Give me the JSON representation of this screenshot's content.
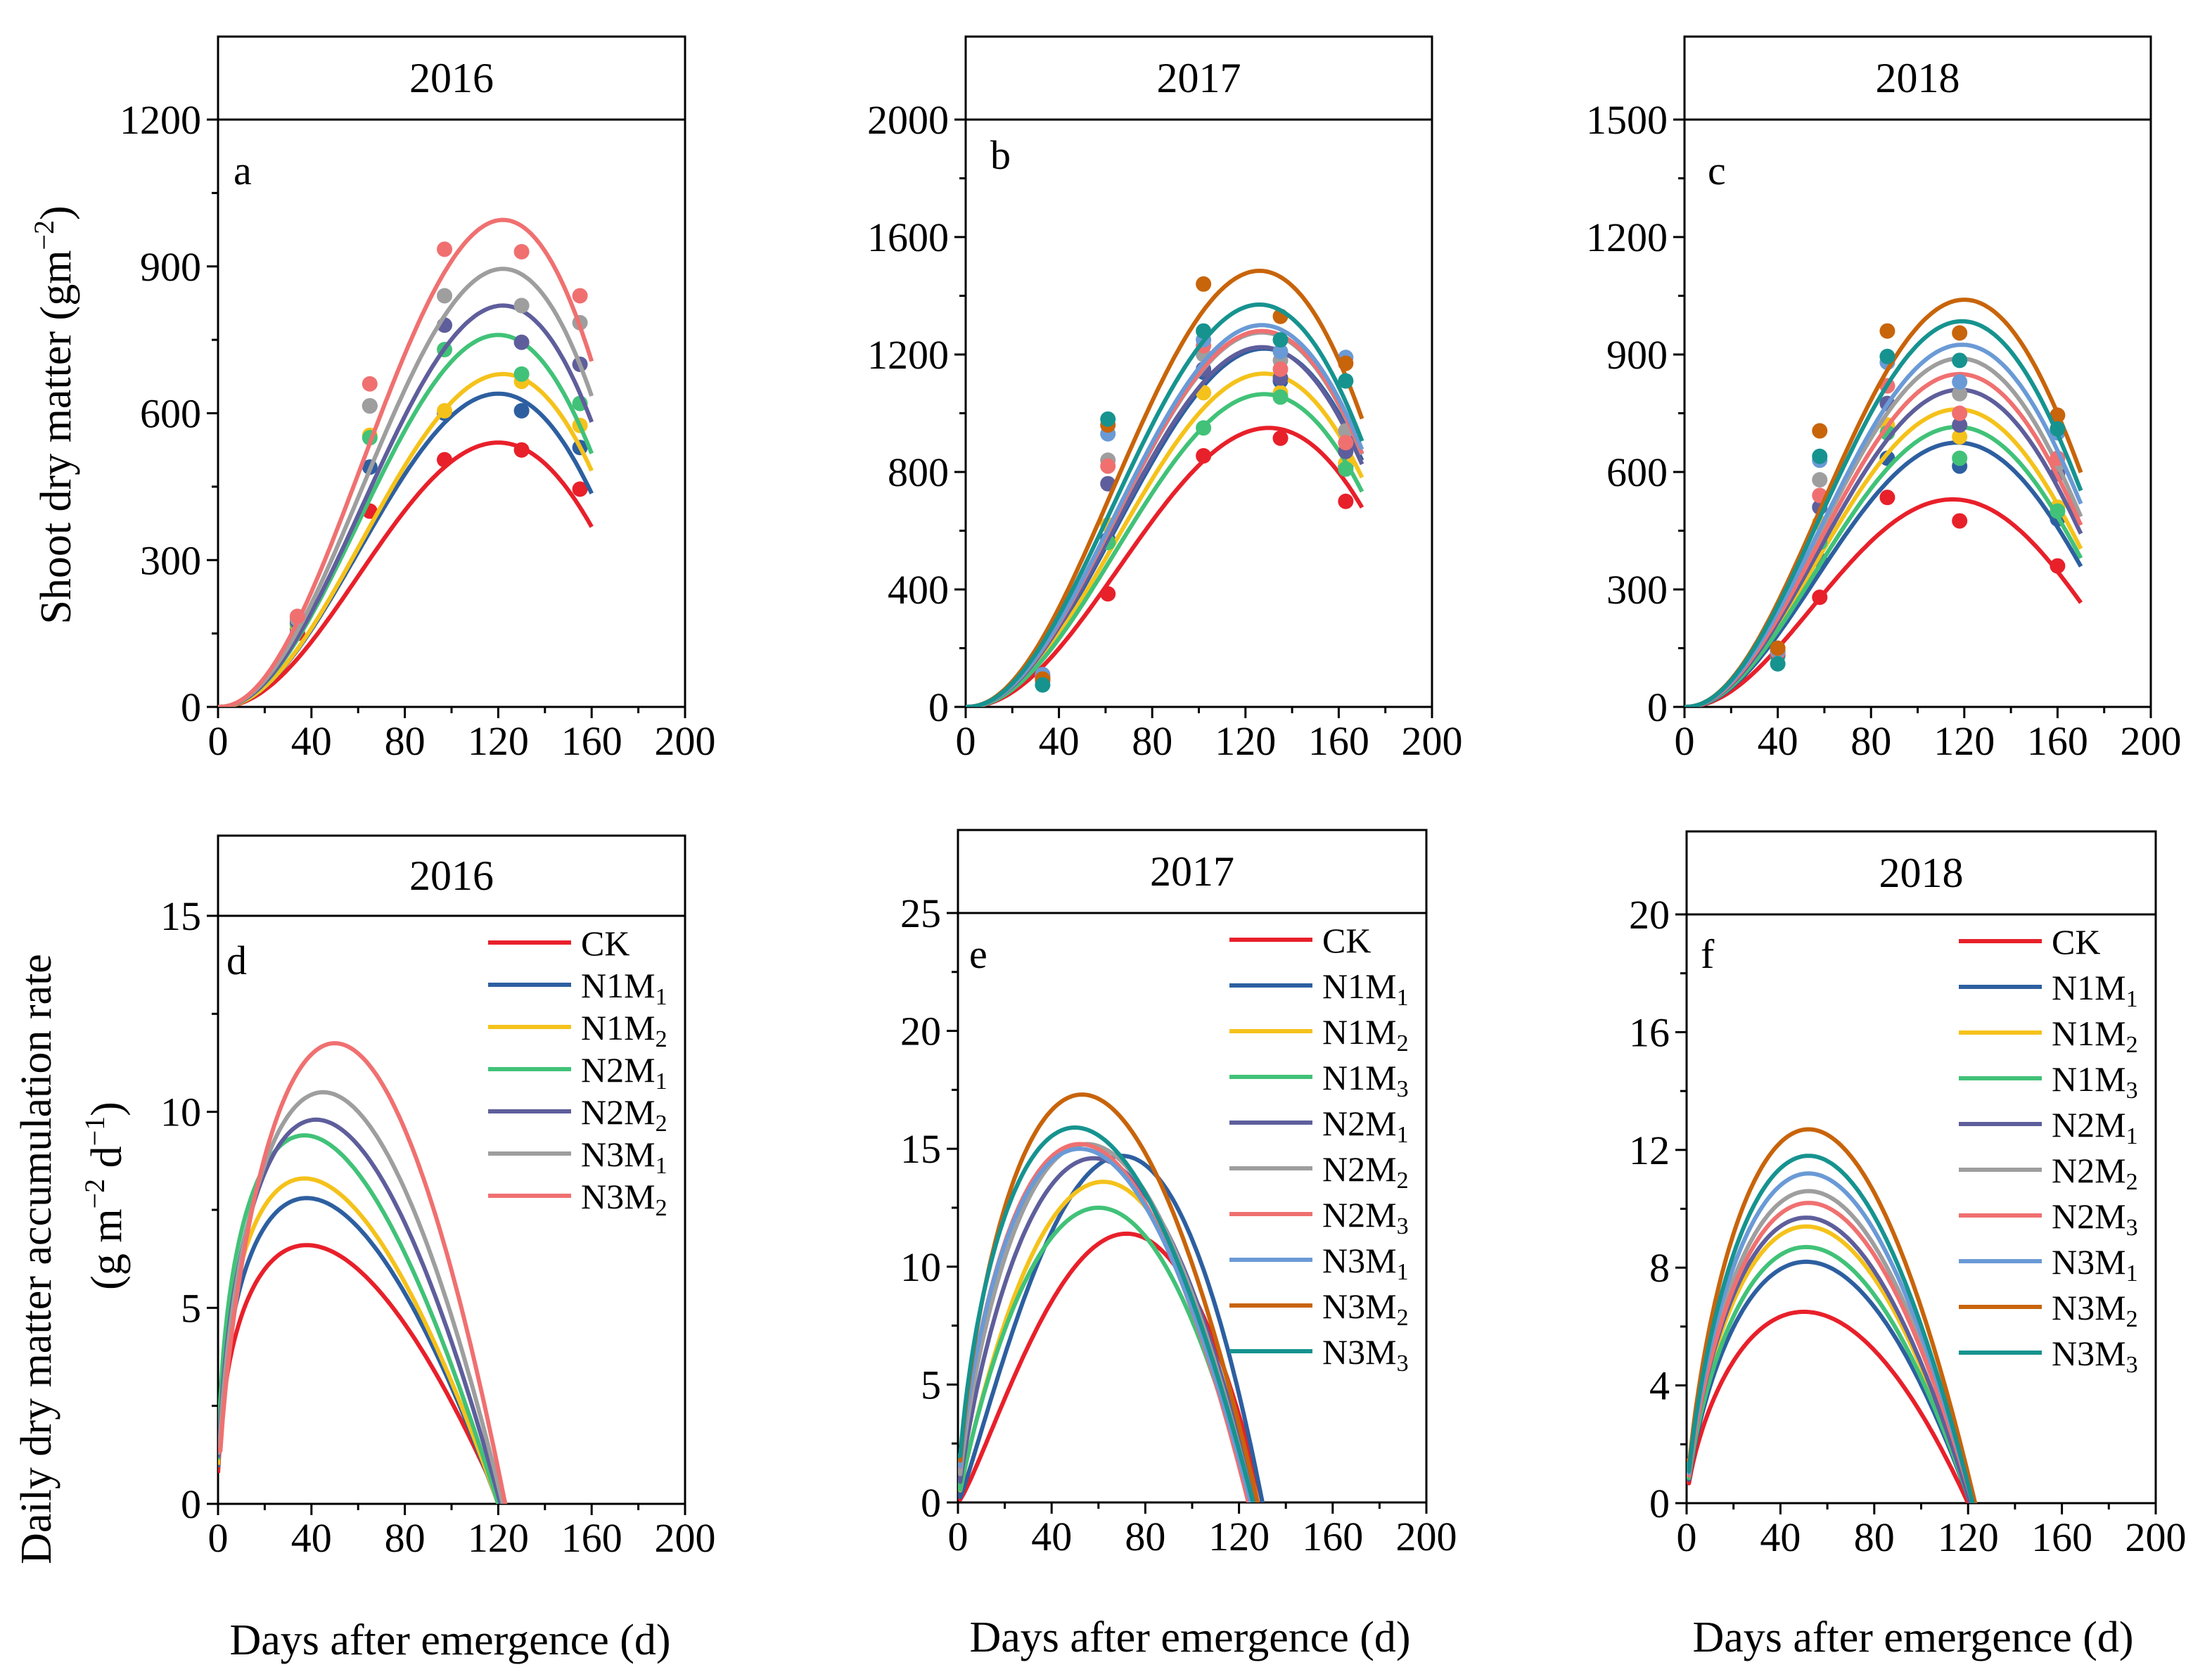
{
  "figure": {
    "y_label_top": "Shoot dry matter (gm",
    "y_label_top_sup": "−2",
    "y_label_top_close": ")",
    "y_label_bottom_line1": "Daily dry matter accumulation rate",
    "y_label_bottom_line2_a": "(g m",
    "y_label_bottom_line2_sup1": "−2",
    "y_label_bottom_line2_b": " d",
    "y_label_bottom_line2_sup2": "−1",
    "y_label_bottom_line2_c": ")",
    "x_label": "Days after emergence (d)"
  },
  "colors": {
    "CK": "#e8202a",
    "N1M1": "#2d5fa0",
    "N1M2": "#f5c21b",
    "N1M3": "#41c278",
    "N2M1": "#5e5e9c",
    "N2M2": "#9e9e9e",
    "N2M3": "#f07070",
    "N3M1": "#6a9ad6",
    "N3M2": "#c8640a",
    "N3M3": "#16938f",
    "N2M1_2016": "#41c278",
    "N2M2_2016": "#5e5e9c",
    "N3M1_2016": "#9e9e9e",
    "N3M2_2016": "#f07070"
  },
  "chart_data": [
    {
      "id": "a",
      "type": "scatter+line",
      "title": "2016",
      "xlabel": "Days after emergence (d)",
      "ylabel": "Shoot dry matter (gm−2)",
      "xlim": [
        0,
        200
      ],
      "ylim": [
        0,
        1200
      ],
      "panel_top": 1340,
      "xticks": [
        "0",
        "40",
        "80",
        "120",
        "160",
        "200"
      ],
      "yticks": [
        0,
        300,
        600,
        900,
        1200
      ],
      "x": [
        34,
        65,
        97,
        130,
        155
      ],
      "series": [
        {
          "name": "CK",
          "color_key": "CK",
          "values": [
            150,
            400,
            505,
            525,
            445
          ],
          "peak": 540,
          "tpeak": 120,
          "tend": 160
        },
        {
          "name": "N1M1",
          "color_key": "N1M1",
          "values": [
            160,
            490,
            600,
            605,
            530
          ],
          "peak": 640,
          "tpeak": 120,
          "tend": 160
        },
        {
          "name": "N1M2",
          "color_key": "N1M2",
          "values": [
            165,
            555,
            605,
            665,
            575
          ],
          "peak": 680,
          "tpeak": 122,
          "tend": 160
        },
        {
          "name": "N2M1",
          "color_key": "N2M1_2016",
          "values": [
            170,
            550,
            730,
            680,
            620
          ],
          "peak": 760,
          "tpeak": 120,
          "tend": 160
        },
        {
          "name": "N2M2",
          "color_key": "N2M2_2016",
          "values": [
            175,
            615,
            780,
            745,
            700
          ],
          "peak": 820,
          "tpeak": 122,
          "tend": 160
        },
        {
          "name": "N3M1",
          "color_key": "N3M1_2016",
          "values": [
            180,
            615,
            840,
            820,
            785
          ],
          "peak": 895,
          "tpeak": 122,
          "tend": 160
        },
        {
          "name": "N3M2",
          "color_key": "N3M2_2016",
          "values": [
            185,
            660,
            935,
            930,
            840
          ],
          "peak": 995,
          "tpeak": 122,
          "tend": 160
        }
      ]
    },
    {
      "id": "b",
      "type": "scatter+line",
      "title": "2017",
      "xlabel": "Days after emergence (d)",
      "ylabel": "Shoot dry matter (gm−2)",
      "xlim": [
        0,
        200
      ],
      "ylim": [
        0,
        2000
      ],
      "panel_top": 2230,
      "xticks": [
        "0",
        "40",
        "80",
        "120",
        "160",
        "200"
      ],
      "yticks": [
        0,
        400,
        800,
        1200,
        1600,
        2000
      ],
      "x": [
        33,
        61,
        102,
        135,
        163
      ],
      "series": [
        {
          "name": "CK",
          "color_key": "CK",
          "values": [
            90,
            385,
            855,
            915,
            700
          ],
          "peak": 950,
          "tpeak": 130,
          "tend": 170
        },
        {
          "name": "N1M1",
          "color_key": "N1M1",
          "values": [
            95,
            570,
            1140,
            1110,
            820
          ],
          "peak": 1220,
          "tpeak": 128,
          "tend": 170
        },
        {
          "name": "N1M2",
          "color_key": "N1M2",
          "values": [
            95,
            620,
            1070,
            1070,
            830
          ],
          "peak": 1135,
          "tpeak": 128,
          "tend": 170
        },
        {
          "name": "N1M3",
          "color_key": "N1M3",
          "values": [
            100,
            560,
            950,
            1055,
            810
          ],
          "peak": 1065,
          "tpeak": 128,
          "tend": 170
        },
        {
          "name": "N2M1",
          "color_key": "N2M1",
          "values": [
            100,
            760,
            1150,
            1120,
            870
          ],
          "peak": 1225,
          "tpeak": 127,
          "tend": 170
        },
        {
          "name": "N2M2",
          "color_key": "N2M2",
          "values": [
            105,
            840,
            1200,
            1180,
            940
          ],
          "peak": 1275,
          "tpeak": 127,
          "tend": 170
        },
        {
          "name": "N2M3",
          "color_key": "N2M3",
          "values": [
            100,
            820,
            1230,
            1150,
            900
          ],
          "peak": 1280,
          "tpeak": 127,
          "tend": 170
        },
        {
          "name": "N3M1",
          "color_key": "N3M1",
          "values": [
            110,
            930,
            1250,
            1210,
            1190
          ],
          "peak": 1300,
          "tpeak": 127,
          "tend": 170
        },
        {
          "name": "N3M2",
          "color_key": "N3M2",
          "values": [
            95,
            960,
            1440,
            1330,
            1170
          ],
          "peak": 1485,
          "tpeak": 126,
          "tend": 170
        },
        {
          "name": "N3M3",
          "color_key": "N3M3",
          "values": [
            75,
            980,
            1280,
            1250,
            1110
          ],
          "peak": 1370,
          "tpeak": 126,
          "tend": 170
        }
      ]
    },
    {
      "id": "c",
      "type": "scatter+line",
      "title": "2018",
      "xlabel": "Days after emergence (d)",
      "ylabel": "Shoot dry matter (gm−2)",
      "xlim": [
        0,
        200
      ],
      "ylim": [
        0,
        1500
      ],
      "panel_top": 1700,
      "xticks": [
        "0",
        "40",
        "80",
        "120",
        "160",
        "200"
      ],
      "yticks": [
        0,
        300,
        600,
        900,
        1200,
        1500
      ],
      "x": [
        40,
        58,
        87,
        118,
        160
      ],
      "series": [
        {
          "name": "CK",
          "color_key": "CK",
          "values": [
            140,
            280,
            535,
            475,
            360
          ],
          "peak": 530,
          "tpeak": 115,
          "tend": 170
        },
        {
          "name": "N1M1",
          "color_key": "N1M1",
          "values": [
            130,
            375,
            635,
            615,
            480
          ],
          "peak": 675,
          "tpeak": 117,
          "tend": 170
        },
        {
          "name": "N1M2",
          "color_key": "N1M2",
          "values": [
            135,
            470,
            720,
            690,
            510
          ],
          "peak": 760,
          "tpeak": 117,
          "tend": 170
        },
        {
          "name": "N1M3",
          "color_key": "N1M3",
          "values": [
            130,
            420,
            700,
            635,
            500
          ],
          "peak": 715,
          "tpeak": 117,
          "tend": 170
        },
        {
          "name": "N2M1",
          "color_key": "N2M1",
          "values": [
            135,
            510,
            775,
            720,
            595
          ],
          "peak": 810,
          "tpeak": 118,
          "tend": 170
        },
        {
          "name": "N2M2",
          "color_key": "N2M2",
          "values": [
            140,
            580,
            820,
            800,
            620
          ],
          "peak": 890,
          "tpeak": 118,
          "tend": 170
        },
        {
          "name": "N2M3",
          "color_key": "N2M3",
          "values": [
            140,
            540,
            820,
            750,
            635
          ],
          "peak": 850,
          "tpeak": 118,
          "tend": 170
        },
        {
          "name": "N3M1",
          "color_key": "N3M1",
          "values": [
            145,
            630,
            880,
            830,
            700
          ],
          "peak": 925,
          "tpeak": 119,
          "tend": 170
        },
        {
          "name": "N3M2",
          "color_key": "N3M2",
          "values": [
            150,
            705,
            960,
            955,
            745
          ],
          "peak": 1040,
          "tpeak": 120,
          "tend": 170
        },
        {
          "name": "N3M3",
          "color_key": "N3M3",
          "values": [
            110,
            640,
            895,
            885,
            710
          ],
          "peak": 985,
          "tpeak": 119,
          "tend": 170
        }
      ]
    },
    {
      "id": "d",
      "type": "line",
      "title": "2016",
      "xlabel": "Days after emergence (d)",
      "ylabel": "Daily dry matter accumulation rate (g m−2 d−1)",
      "xlim": [
        0,
        200
      ],
      "ylim": [
        0,
        15
      ],
      "panel_top": 17,
      "xticks": [
        "0",
        "40",
        "80",
        "120",
        "160",
        "200"
      ],
      "yticks": [
        0,
        5,
        10,
        15
      ],
      "legend_position": "top-right",
      "series": [
        {
          "name": "CK",
          "label": "CK",
          "sub": "",
          "color_key": "CK",
          "peak": 6.6,
          "tpeak": 38,
          "tend": 121
        },
        {
          "name": "N1M1",
          "label": "N1M",
          "sub": "1",
          "color_key": "N1M1",
          "peak": 7.8,
          "tpeak": 38,
          "tend": 120
        },
        {
          "name": "N1M2",
          "label": "N1M",
          "sub": "2",
          "color_key": "N1M2",
          "peak": 8.3,
          "tpeak": 37,
          "tend": 120
        },
        {
          "name": "N2M1",
          "label": "N2M",
          "sub": "1",
          "color_key": "N2M1_2016",
          "peak": 9.4,
          "tpeak": 37,
          "tend": 120
        },
        {
          "name": "N2M2",
          "label": "N2M",
          "sub": "2",
          "color_key": "N2M2_2016",
          "peak": 9.8,
          "tpeak": 42,
          "tend": 121
        },
        {
          "name": "N3M1",
          "label": "N3M",
          "sub": "1",
          "color_key": "N3M1_2016",
          "peak": 10.5,
          "tpeak": 45,
          "tend": 122
        },
        {
          "name": "N3M2",
          "label": "N3M",
          "sub": "2",
          "color_key": "N3M2_2016",
          "peak": 11.75,
          "tpeak": 50,
          "tend": 123
        }
      ]
    },
    {
      "id": "e",
      "type": "line",
      "title": "2017",
      "xlabel": "Days after emergence (d)",
      "ylabel": "Daily dry matter accumulation rate (g m−2 d−1)",
      "xlim": [
        0,
        200
      ],
      "ylim": [
        0,
        25
      ],
      "panel_top": 28.5,
      "xticks": [
        "0",
        "40",
        "80",
        "120",
        "160",
        "200"
      ],
      "yticks": [
        0,
        5,
        10,
        15,
        20,
        25
      ],
      "legend_position": "top-right",
      "series": [
        {
          "name": "CK",
          "label": "CK",
          "sub": "",
          "color_key": "CK",
          "peak": 11.4,
          "tpeak": 72,
          "tend": 130
        },
        {
          "name": "N1M1",
          "label": "N1M",
          "sub": "1",
          "color_key": "N1M1",
          "peak": 14.7,
          "tpeak": 70,
          "tend": 130
        },
        {
          "name": "N1M2",
          "label": "N1M",
          "sub": "2",
          "color_key": "N1M2",
          "peak": 13.6,
          "tpeak": 62,
          "tend": 127
        },
        {
          "name": "N1M3",
          "label": "N1M",
          "sub": "3",
          "color_key": "N1M3",
          "peak": 12.5,
          "tpeak": 60,
          "tend": 125
        },
        {
          "name": "N2M1",
          "label": "N2M",
          "sub": "1",
          "color_key": "N2M1",
          "peak": 14.6,
          "tpeak": 58,
          "tend": 127
        },
        {
          "name": "N2M2",
          "label": "N2M",
          "sub": "2",
          "color_key": "N2M2",
          "peak": 15.2,
          "tpeak": 55,
          "tend": 126
        },
        {
          "name": "N2M3",
          "label": "N2M",
          "sub": "3",
          "color_key": "N2M3",
          "peak": 15.2,
          "tpeak": 52,
          "tend": 124
        },
        {
          "name": "N3M1",
          "label": "N3M",
          "sub": "1",
          "color_key": "N3M1",
          "peak": 15.0,
          "tpeak": 52,
          "tend": 125
        },
        {
          "name": "N3M2",
          "label": "N3M",
          "sub": "2",
          "color_key": "N3M2",
          "peak": 17.3,
          "tpeak": 53,
          "tend": 128
        },
        {
          "name": "N3M3",
          "label": "N3M",
          "sub": "3",
          "color_key": "N3M3",
          "peak": 15.9,
          "tpeak": 50,
          "tend": 126
        }
      ]
    },
    {
      "id": "f",
      "type": "line",
      "title": "2018",
      "xlabel": "Days after emergence (d)",
      "ylabel": "Daily dry matter accumulation rate (g m−2 d−1)",
      "xlim": [
        0,
        200
      ],
      "ylim": [
        0,
        20
      ],
      "panel_top": 22.7,
      "xticks": [
        "0",
        "40",
        "80",
        "120",
        "160",
        "200"
      ],
      "yticks": [
        0,
        4,
        8,
        12,
        16,
        20
      ],
      "legend_position": "top-right",
      "series": [
        {
          "name": "CK",
          "label": "CK",
          "sub": "",
          "color_key": "CK",
          "peak": 6.5,
          "tpeak": 50,
          "tend": 120
        },
        {
          "name": "N1M1",
          "label": "N1M",
          "sub": "1",
          "color_key": "N1M1",
          "peak": 8.2,
          "tpeak": 51,
          "tend": 121
        },
        {
          "name": "N1M2",
          "label": "N1M",
          "sub": "2",
          "color_key": "N1M2",
          "peak": 9.4,
          "tpeak": 51,
          "tend": 121
        },
        {
          "name": "N1M3",
          "label": "N1M",
          "sub": "3",
          "color_key": "N1M3",
          "peak": 8.7,
          "tpeak": 51,
          "tend": 121
        },
        {
          "name": "N2M1",
          "label": "N2M",
          "sub": "1",
          "color_key": "N2M1",
          "peak": 9.7,
          "tpeak": 51,
          "tend": 121
        },
        {
          "name": "N2M2",
          "label": "N2M",
          "sub": "2",
          "color_key": "N2M2",
          "peak": 10.6,
          "tpeak": 52,
          "tend": 122
        },
        {
          "name": "N2M3",
          "label": "N2M",
          "sub": "3",
          "color_key": "N2M3",
          "peak": 10.2,
          "tpeak": 52,
          "tend": 122
        },
        {
          "name": "N3M1",
          "label": "N3M",
          "sub": "1",
          "color_key": "N3M1",
          "peak": 11.2,
          "tpeak": 52,
          "tend": 122
        },
        {
          "name": "N3M2",
          "label": "N3M",
          "sub": "2",
          "color_key": "N3M2",
          "peak": 12.7,
          "tpeak": 52,
          "tend": 123
        },
        {
          "name": "N3M3",
          "label": "N3M",
          "sub": "3",
          "color_key": "N3M3",
          "peak": 11.8,
          "tpeak": 52,
          "tend": 122
        }
      ]
    }
  ]
}
